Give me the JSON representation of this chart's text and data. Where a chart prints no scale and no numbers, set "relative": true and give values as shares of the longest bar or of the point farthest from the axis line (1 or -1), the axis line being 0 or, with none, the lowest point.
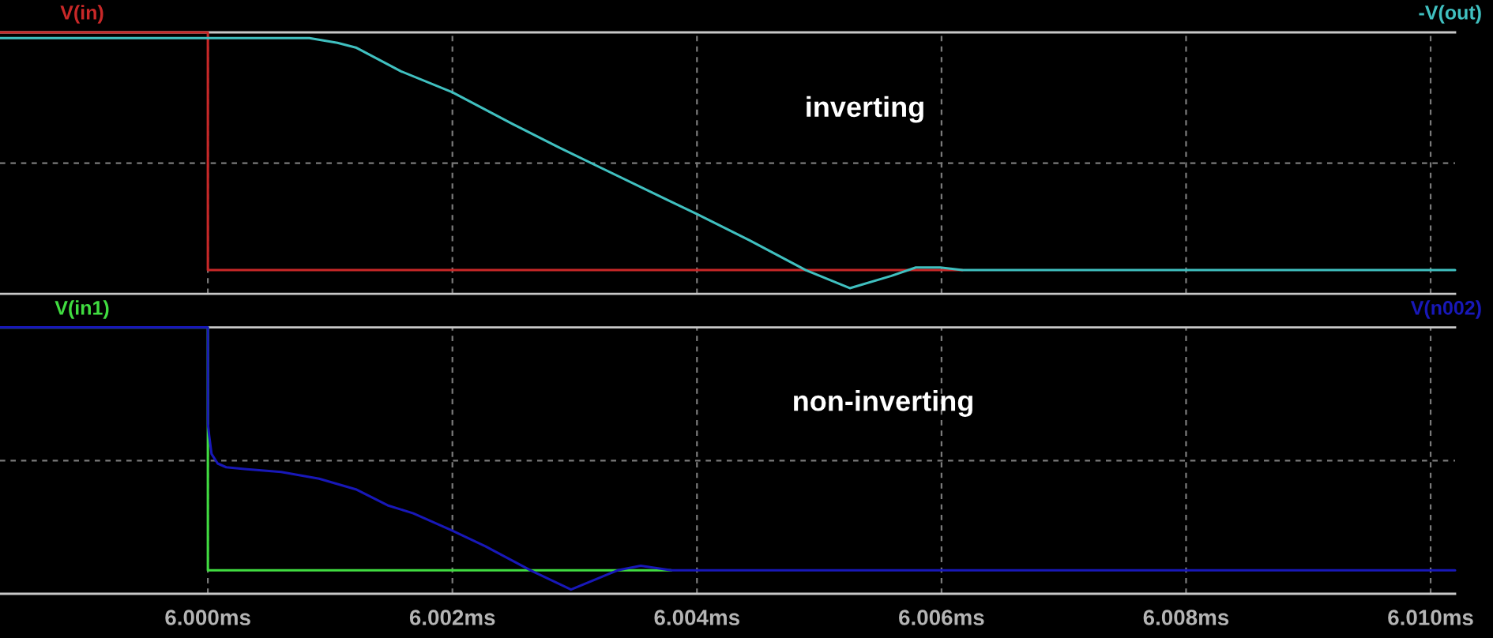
{
  "chart_data": [
    {
      "type": "line",
      "title": "inverting",
      "relative": true,
      "xlim": [
        5.9983,
        6.0102
      ],
      "xticks": [
        {
          "value": 6.0,
          "label": null
        },
        {
          "value": 6.002,
          "label": null
        },
        {
          "value": 6.004,
          "label": null
        },
        {
          "value": 6.006,
          "label": null
        },
        {
          "value": 6.008,
          "label": null
        },
        {
          "value": 6.01,
          "label": null
        }
      ],
      "tick_labels": false,
      "grid": true,
      "series": [
        {
          "name": "V(in)",
          "color": "#c82828",
          "x": [
            5.9983,
            6.0,
            6.0,
            6.00617
          ],
          "values": [
            1.0,
            1.0,
            0.091,
            0.091
          ]
        },
        {
          "name": "-V(out)",
          "color": "#40c0c0",
          "x": [
            5.9983,
            6.00083,
            6.00106,
            6.00121,
            6.00136,
            6.00158,
            6.002,
            6.00249,
            6.00287,
            6.00363,
            6.004,
            6.00443,
            6.00489,
            6.00525,
            6.00559,
            6.00579,
            6.00599,
            6.00617,
            6.0102
          ],
          "values": [
            0.978,
            0.978,
            0.96,
            0.942,
            0.905,
            0.851,
            0.771,
            0.65,
            0.56,
            0.388,
            0.305,
            0.205,
            0.091,
            0.022,
            0.069,
            0.101,
            0.101,
            0.091,
            0.091
          ]
        }
      ]
    },
    {
      "type": "line",
      "title": "non-inverting",
      "relative": true,
      "xlim": [
        5.9983,
        6.0102
      ],
      "xticks": [
        {
          "value": 6.0,
          "label": "6.000ms"
        },
        {
          "value": 6.002,
          "label": "6.002ms"
        },
        {
          "value": 6.004,
          "label": "6.004ms"
        },
        {
          "value": 6.006,
          "label": "6.006ms"
        },
        {
          "value": 6.008,
          "label": "6.008ms"
        },
        {
          "value": 6.01,
          "label": "6.010ms"
        }
      ],
      "tick_labels": "x",
      "grid": true,
      "series": [
        {
          "name": "V(in1)",
          "color": "#40dc40",
          "x": [
            5.9983,
            6.0,
            6.0,
            6.00379
          ],
          "values": [
            1.0,
            1.0,
            0.088,
            0.088
          ]
        },
        {
          "name": "V(n002)",
          "color": "#1818b8",
          "x": [
            5.9983,
            6.0,
            6.0,
            6.00001,
            6.00003,
            6.00008,
            6.00015,
            6.0003,
            6.0006,
            6.00091,
            6.00121,
            6.00147,
            6.00168,
            6.00199,
            6.00227,
            6.00264,
            6.00297,
            6.00335,
            6.00354,
            6.00379,
            6.0102
          ],
          "values": [
            1.0,
            1.0,
            0.638,
            0.596,
            0.525,
            0.489,
            0.475,
            0.468,
            0.457,
            0.432,
            0.392,
            0.332,
            0.302,
            0.239,
            0.178,
            0.088,
            0.016,
            0.088,
            0.105,
            0.088,
            0.088
          ]
        }
      ]
    }
  ]
}
